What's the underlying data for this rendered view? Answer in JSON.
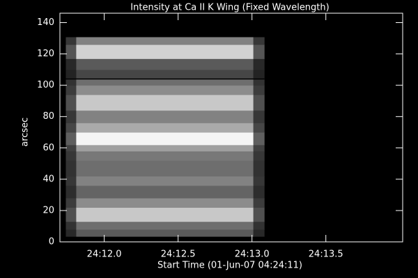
{
  "chart_data": {
    "type": "image",
    "title": "Intensity at Ca II K Wing (Fixed Wavelength)",
    "x_label": "Start Time (01-Jun-07 04:24:11)",
    "y_label": "arcsec",
    "xlim": [
      0.7,
      3.02
    ],
    "ylim": [
      0,
      146
    ],
    "xticks": [
      {
        "value": 1.0,
        "label": "24:12.0"
      },
      {
        "value": 1.5,
        "label": "24:12.5"
      },
      {
        "value": 2.0,
        "label": "24:13.0"
      },
      {
        "value": 2.5,
        "label": "24:13.5"
      }
    ],
    "yticks": [
      0,
      20,
      40,
      60,
      80,
      100,
      120,
      140
    ],
    "image_x_edges": [
      0.74,
      0.81,
      2.01,
      2.085
    ],
    "image_y_edges": [
      3.5,
      8,
      13,
      22,
      28,
      36,
      42,
      52,
      58,
      62,
      70,
      76,
      84,
      94,
      100,
      104,
      110,
      117,
      126,
      130.7
    ],
    "values": [
      [
        40,
        90,
        40
      ],
      [
        50,
        110,
        50
      ],
      [
        80,
        200,
        80
      ],
      [
        60,
        140,
        60
      ],
      [
        45,
        100,
        45
      ],
      [
        55,
        130,
        55
      ],
      [
        50,
        110,
        50
      ],
      [
        55,
        120,
        55
      ],
      [
        65,
        160,
        65
      ],
      [
        95,
        245,
        95
      ],
      [
        70,
        170,
        70
      ],
      [
        55,
        130,
        55
      ],
      [
        80,
        200,
        80
      ],
      [
        60,
        140,
        60
      ],
      [
        50,
        110,
        50
      ],
      [
        35,
        70,
        35
      ],
      [
        40,
        90,
        40
      ],
      [
        85,
        210,
        85
      ],
      [
        55,
        130,
        55
      ]
    ],
    "hlines": [
      104
    ]
  }
}
